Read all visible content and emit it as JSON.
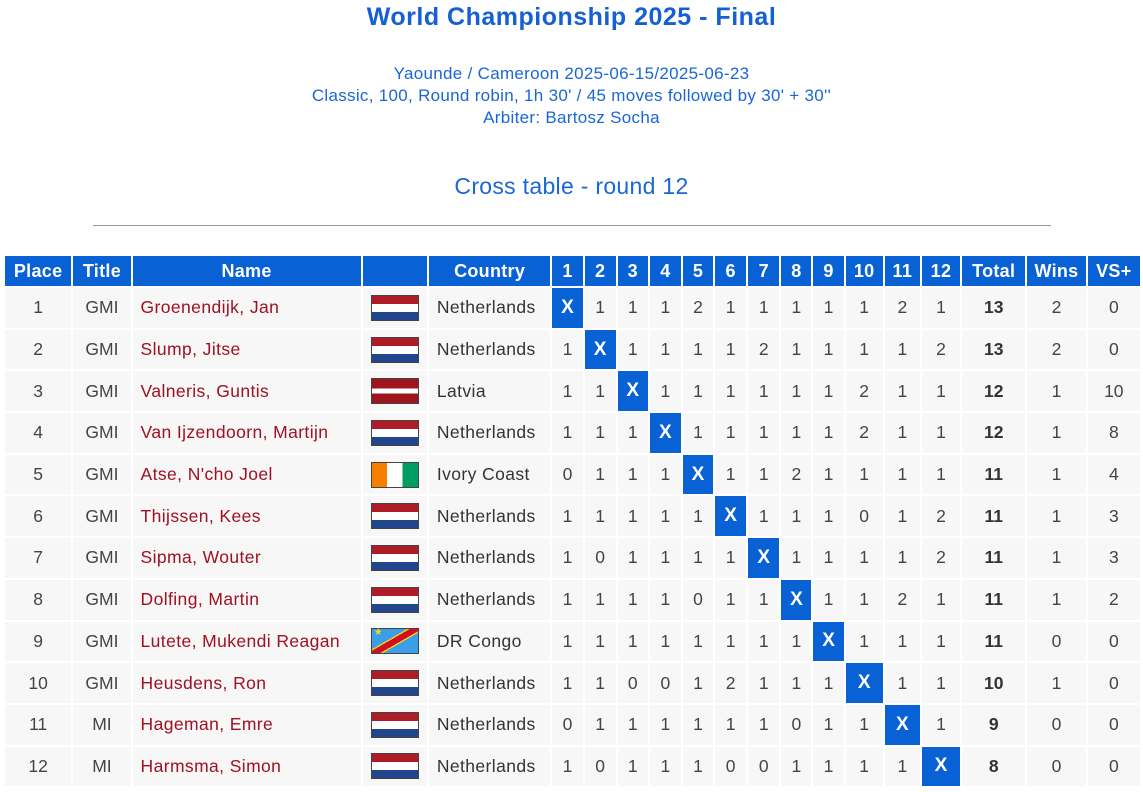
{
  "title": "World Championship 2025 - Final",
  "info": {
    "location": "Yaounde / Cameroon 2025-06-15/2025-06-23",
    "format": "Classic, 100, Round robin, 1h 30' / 45 moves followed by 30' + 30''",
    "arbiter": "Arbiter: Bartosz Socha"
  },
  "subtitle": "Cross table - round 12",
  "headers": {
    "place": "Place",
    "title": "Title",
    "name": "Name",
    "flag": "",
    "country": "Country",
    "rounds": [
      "1",
      "2",
      "3",
      "4",
      "5",
      "6",
      "7",
      "8",
      "9",
      "10",
      "11",
      "12"
    ],
    "total": "Total",
    "wins": "Wins",
    "vs": "VS+"
  },
  "colors": {
    "header_bg": "#0862d6",
    "name_text": "#a01020",
    "accent": "#1560d4"
  },
  "rows": [
    {
      "place": "1",
      "title": "GMI",
      "name": "Groenendijk, Jan",
      "flag": "nl",
      "country": "Netherlands",
      "scores": [
        "X",
        "1",
        "1",
        "1",
        "2",
        "1",
        "1",
        "1",
        "1",
        "1",
        "2",
        "1"
      ],
      "total": "13",
      "wins": "2",
      "vs": "0"
    },
    {
      "place": "2",
      "title": "GMI",
      "name": "Slump, Jitse",
      "flag": "nl",
      "country": "Netherlands",
      "scores": [
        "1",
        "X",
        "1",
        "1",
        "1",
        "1",
        "2",
        "1",
        "1",
        "1",
        "1",
        "2"
      ],
      "total": "13",
      "wins": "2",
      "vs": "0"
    },
    {
      "place": "3",
      "title": "GMI",
      "name": "Valneris, Guntis",
      "flag": "lv",
      "country": "Latvia",
      "scores": [
        "1",
        "1",
        "X",
        "1",
        "1",
        "1",
        "1",
        "1",
        "1",
        "2",
        "1",
        "1"
      ],
      "total": "12",
      "wins": "1",
      "vs": "10"
    },
    {
      "place": "4",
      "title": "GMI",
      "name": "Van Ijzendoorn, Martijn",
      "flag": "nl",
      "country": "Netherlands",
      "scores": [
        "1",
        "1",
        "1",
        "X",
        "1",
        "1",
        "1",
        "1",
        "1",
        "2",
        "1",
        "1"
      ],
      "total": "12",
      "wins": "1",
      "vs": "8"
    },
    {
      "place": "5",
      "title": "GMI",
      "name": "Atse, N'cho Joel",
      "flag": "ci",
      "country": "Ivory Coast",
      "scores": [
        "0",
        "1",
        "1",
        "1",
        "X",
        "1",
        "1",
        "2",
        "1",
        "1",
        "1",
        "1"
      ],
      "total": "11",
      "wins": "1",
      "vs": "4"
    },
    {
      "place": "6",
      "title": "GMI",
      "name": "Thijssen, Kees",
      "flag": "nl",
      "country": "Netherlands",
      "scores": [
        "1",
        "1",
        "1",
        "1",
        "1",
        "X",
        "1",
        "1",
        "1",
        "0",
        "1",
        "2"
      ],
      "total": "11",
      "wins": "1",
      "vs": "3"
    },
    {
      "place": "7",
      "title": "GMI",
      "name": "Sipma, Wouter",
      "flag": "nl",
      "country": "Netherlands",
      "scores": [
        "1",
        "0",
        "1",
        "1",
        "1",
        "1",
        "X",
        "1",
        "1",
        "1",
        "1",
        "2"
      ],
      "total": "11",
      "wins": "1",
      "vs": "3"
    },
    {
      "place": "8",
      "title": "GMI",
      "name": "Dolfing, Martin",
      "flag": "nl",
      "country": "Netherlands",
      "scores": [
        "1",
        "1",
        "1",
        "1",
        "0",
        "1",
        "1",
        "X",
        "1",
        "1",
        "2",
        "1"
      ],
      "total": "11",
      "wins": "1",
      "vs": "2"
    },
    {
      "place": "9",
      "title": "GMI",
      "name": "Lutete, Mukendi Reagan",
      "flag": "cd",
      "country": "DR Congo",
      "scores": [
        "1",
        "1",
        "1",
        "1",
        "1",
        "1",
        "1",
        "1",
        "X",
        "1",
        "1",
        "1"
      ],
      "total": "11",
      "wins": "0",
      "vs": "0"
    },
    {
      "place": "10",
      "title": "GMI",
      "name": "Heusdens, Ron",
      "flag": "nl",
      "country": "Netherlands",
      "scores": [
        "1",
        "1",
        "0",
        "0",
        "1",
        "2",
        "1",
        "1",
        "1",
        "X",
        "1",
        "1"
      ],
      "total": "10",
      "wins": "1",
      "vs": "0"
    },
    {
      "place": "11",
      "title": "MI",
      "name": "Hageman, Emre",
      "flag": "nl",
      "country": "Netherlands",
      "scores": [
        "0",
        "1",
        "1",
        "1",
        "1",
        "1",
        "1",
        "0",
        "1",
        "1",
        "X",
        "1"
      ],
      "total": "9",
      "wins": "0",
      "vs": "0"
    },
    {
      "place": "12",
      "title": "MI",
      "name": "Harmsma, Simon",
      "flag": "nl",
      "country": "Netherlands",
      "scores": [
        "1",
        "0",
        "1",
        "1",
        "1",
        "0",
        "0",
        "1",
        "1",
        "1",
        "1",
        "X"
      ],
      "total": "8",
      "wins": "0",
      "vs": "0"
    }
  ]
}
